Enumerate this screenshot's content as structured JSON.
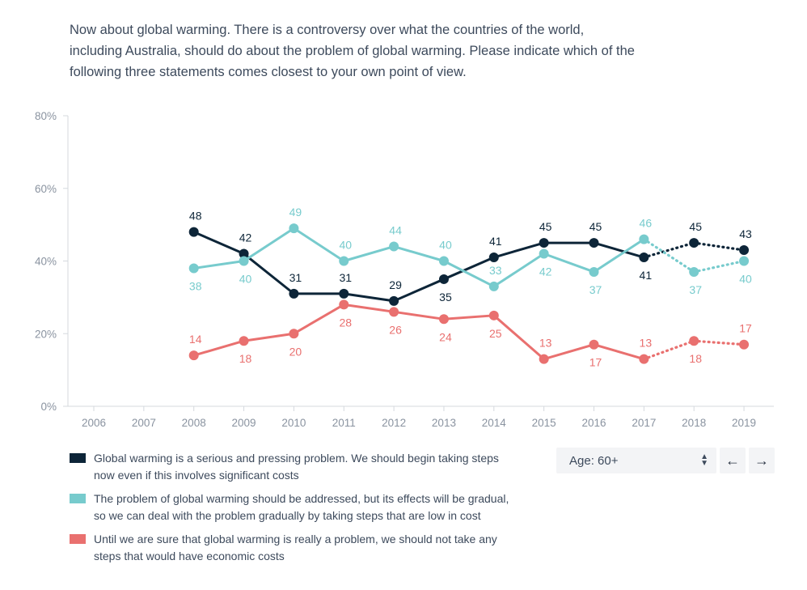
{
  "question": "Now about global warming. There is a controversy over what the countries of the world, including Australia, should do about the problem of global warming. Please indicate which of the following three statements comes closest to your own point of view.",
  "chart_data": {
    "type": "line",
    "categories": [
      "2006",
      "2007",
      "2008",
      "2009",
      "2010",
      "2011",
      "2012",
      "2013",
      "2014",
      "2015",
      "2016",
      "2017",
      "2018",
      "2019"
    ],
    "ylim": [
      0,
      80
    ],
    "yticks": [
      0,
      20,
      40,
      60,
      80
    ],
    "ytick_labels": [
      "0%",
      "20%",
      "40%",
      "60%",
      "80%"
    ],
    "dotted_from": "2017",
    "series": [
      {
        "name": "Global warming is a serious and pressing problem. We should begin taking steps now even if this involves significant costs",
        "color": "#0d2538",
        "values": [
          null,
          null,
          48,
          42,
          31,
          31,
          29,
          35,
          41,
          45,
          45,
          41,
          45,
          43
        ],
        "label_pos": [
          null,
          null,
          "above",
          "above",
          "above",
          "above",
          "above",
          "below",
          "above",
          "above",
          "above",
          "below",
          "above",
          "above"
        ]
      },
      {
        "name": "The problem of global warming should be addressed, but its effects will be gradual, so we can deal with the problem gradually by taking steps that are low in cost",
        "color": "#77cbcd",
        "values": [
          null,
          null,
          38,
          40,
          49,
          40,
          44,
          40,
          33,
          42,
          37,
          46,
          37,
          40
        ],
        "label_pos": [
          null,
          null,
          "below",
          "below",
          "above",
          "above",
          "above",
          "above",
          "above",
          "below",
          "below",
          "above",
          "below",
          "below"
        ]
      },
      {
        "name": "Until we are sure that global warming is really a problem, we should not take any steps that would have economic costs",
        "color": "#e9706f",
        "values": [
          null,
          null,
          14,
          18,
          20,
          28,
          26,
          24,
          25,
          13,
          17,
          13,
          18,
          17
        ],
        "label_pos": [
          null,
          null,
          "above",
          "below",
          "below",
          "below",
          "below",
          "below",
          "below",
          "above",
          "below",
          "above",
          "below",
          "above"
        ]
      }
    ]
  },
  "legend": [
    {
      "label": "Global warming is a serious and pressing problem. We should begin taking steps now even if this involves significant costs",
      "color": "#0d2538"
    },
    {
      "label": "The problem of global warming should be addressed, but its effects will be gradual, so we can deal with the problem gradually by taking steps that are low in cost",
      "color": "#77cbcd"
    },
    {
      "label": "Until we are sure that global warming is really a problem, we should not take any steps that would have economic costs",
      "color": "#e9706f"
    }
  ],
  "controls": {
    "filter_label": "Age: 60+",
    "prev_icon": "←",
    "next_icon": "→"
  }
}
